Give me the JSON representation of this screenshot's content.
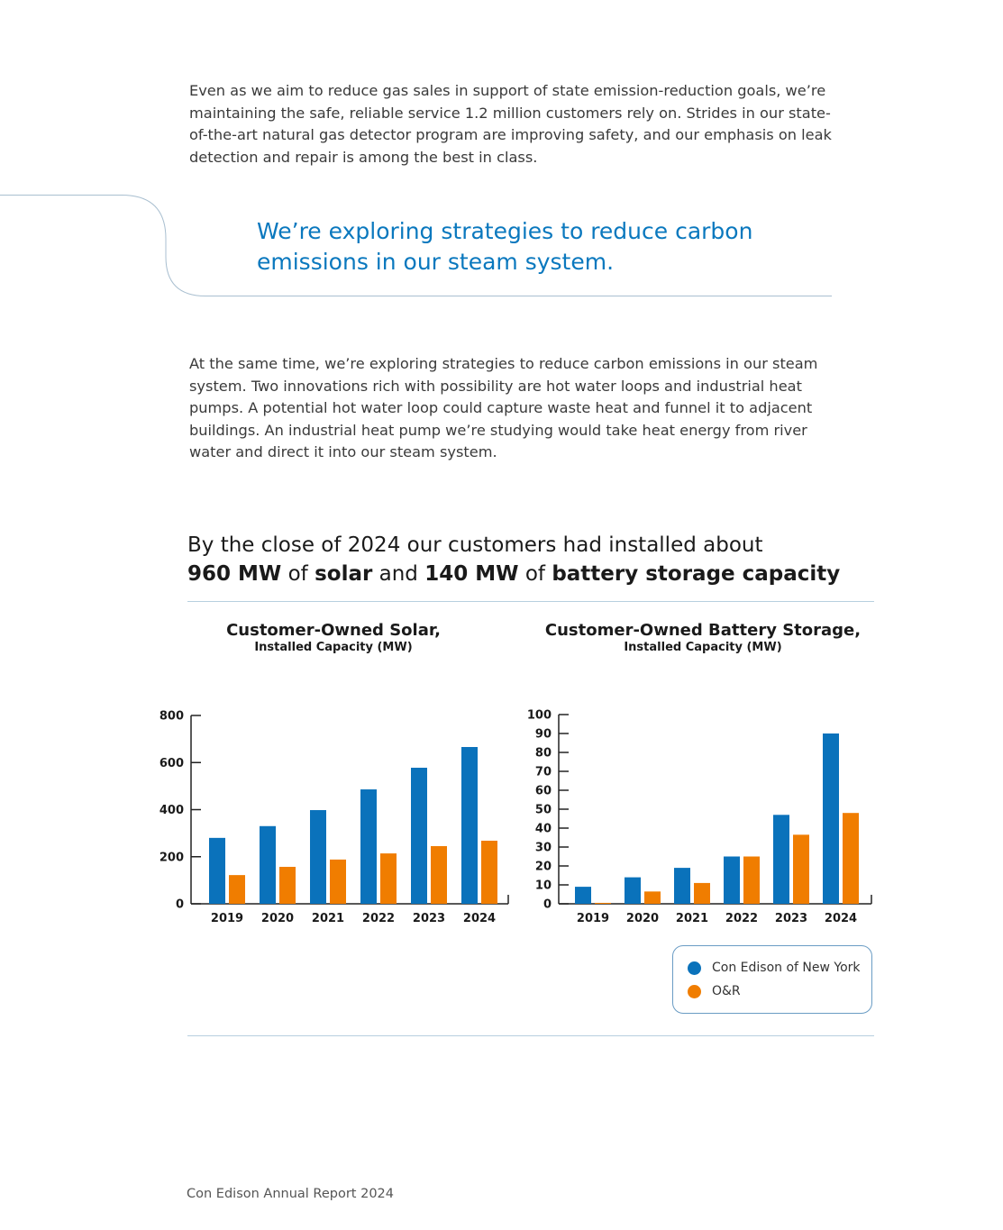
{
  "body": {
    "paragraph_1": "Even as we aim to reduce gas sales in support of state emission-reduction goals, we’re maintaining the safe, reliable service 1.2 million customers rely on. Strides in our state-of-the-art natural gas detector program are improving safety, and our emphasis on leak detection and repair is among the best in class.",
    "pull_quote": "We’re exploring strategies to reduce carbon emissions in our steam system.",
    "paragraph_2": "At the same time, we’re exploring strategies to reduce carbon emissions in our steam system. Two innovations rich with possibility are hot water loops and industrial heat pumps. A potential hot water loop could capture waste heat and funnel it to adjacent buildings. An industrial heat pump we’re studying would take heat energy from river water and direct it into our steam system."
  },
  "headline": {
    "line1": "By the close of 2024 our customers had installed about",
    "v1": "960 MW",
    "of1": " of ",
    "w1": "solar",
    "and": " and ",
    "v2": "140 MW",
    "of2": " of ",
    "w2": "battery storage capacity"
  },
  "colors": {
    "con_edison": "#0a72bb",
    "or": "#f07d00",
    "accent": "#0a78be"
  },
  "legend": {
    "items": [
      {
        "label": "Con Edison of New York"
      },
      {
        "label": "O&R"
      }
    ]
  },
  "chart_data": [
    {
      "type": "bar",
      "title": "Customer-Owned Solar,",
      "subtitle": "Installed Capacity (MW)",
      "categories": [
        "2019",
        "2020",
        "2021",
        "2022",
        "2023",
        "2024"
      ],
      "ylim": [
        0,
        800
      ],
      "yticks": [
        0,
        200,
        400,
        600,
        800
      ],
      "series": [
        {
          "name": "Con Edison of New York",
          "values": [
            280,
            330,
            398,
            486,
            578,
            666
          ]
        },
        {
          "name": "O&R",
          "values": [
            122,
            157,
            188,
            214,
            245,
            268
          ]
        }
      ],
      "legend": "bottom-right"
    },
    {
      "type": "bar",
      "title": "Customer-Owned Battery Storage,",
      "subtitle": "Installed Capacity (MW)",
      "categories": [
        "2019",
        "2020",
        "2021",
        "2022",
        "2023",
        "2024"
      ],
      "ylim": [
        0,
        100
      ],
      "yticks": [
        0,
        10,
        20,
        30,
        40,
        50,
        60,
        70,
        80,
        90,
        100
      ],
      "series": [
        {
          "name": "Con Edison of New York",
          "values": [
            9,
            14,
            19,
            25,
            47,
            90
          ]
        },
        {
          "name": "O&R",
          "values": [
            0.5,
            6.5,
            11,
            25,
            36.5,
            48
          ]
        }
      ],
      "legend": "bottom-right"
    }
  ],
  "footer": "Con Edison Annual Report 2024"
}
